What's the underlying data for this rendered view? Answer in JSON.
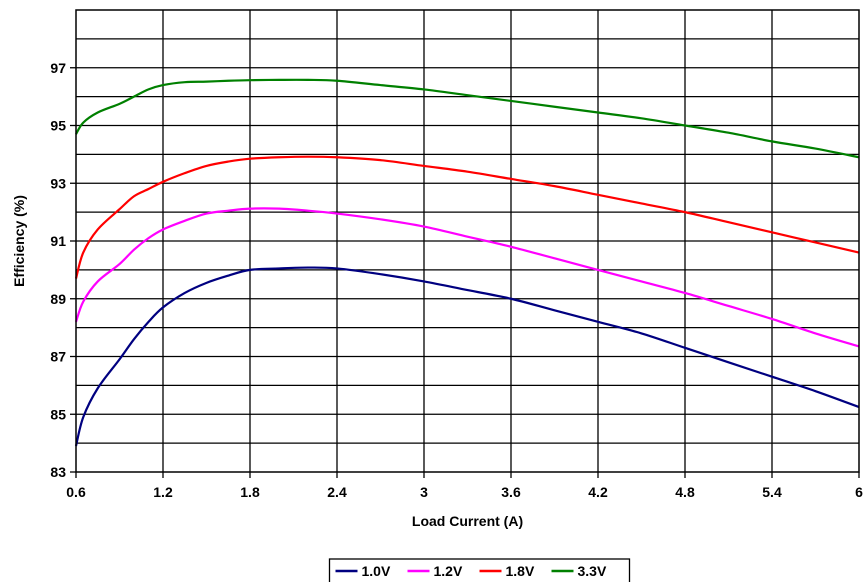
{
  "chart_data": {
    "type": "line",
    "title": "",
    "xlabel": "Load Current (A)",
    "ylabel": "Efficiency (%)",
    "xlim": [
      0.6,
      6
    ],
    "ylim": [
      83,
      99
    ],
    "xticks": [
      0.6,
      1.2,
      1.8,
      2.4,
      3,
      3.6,
      4.2,
      4.8,
      5.4,
      6
    ],
    "xtick_labels": [
      "0.6",
      "1.2",
      "1.8",
      "2.4",
      "3",
      "3.6",
      "4.2",
      "4.8",
      "5.4",
      "6"
    ],
    "yticks": [
      83,
      85,
      87,
      89,
      91,
      93,
      95,
      97
    ],
    "ytick_labels": [
      "83",
      "85",
      "87",
      "89",
      "91",
      "93",
      "95",
      "97"
    ],
    "grid": true,
    "legend_position": "bottom-center",
    "series": [
      {
        "name": "1.0V",
        "color": "#000080",
        "x": [
          0.6,
          0.65,
          0.75,
          0.9,
          1.0,
          1.1,
          1.2,
          1.35,
          1.5,
          1.65,
          1.8,
          2.0,
          2.2,
          2.4,
          2.7,
          3.0,
          3.3,
          3.6,
          3.9,
          4.2,
          4.5,
          4.8,
          5.1,
          5.4,
          5.7,
          6.0
        ],
        "y": [
          83.9,
          84.9,
          85.9,
          86.9,
          87.6,
          88.2,
          88.7,
          89.2,
          89.55,
          89.8,
          90.0,
          90.05,
          90.08,
          90.05,
          89.85,
          89.6,
          89.3,
          89.0,
          88.6,
          88.2,
          87.8,
          87.3,
          86.8,
          86.3,
          85.8,
          85.25
        ]
      },
      {
        "name": "1.2V",
        "color": "#FF00FF",
        "x": [
          0.6,
          0.65,
          0.75,
          0.9,
          1.0,
          1.1,
          1.2,
          1.35,
          1.5,
          1.65,
          1.8,
          2.0,
          2.2,
          2.4,
          2.7,
          3.0,
          3.3,
          3.6,
          3.9,
          4.2,
          4.5,
          4.8,
          5.1,
          5.4,
          5.7,
          6.0
        ],
        "y": [
          88.2,
          88.9,
          89.6,
          90.2,
          90.7,
          91.1,
          91.4,
          91.7,
          91.95,
          92.05,
          92.12,
          92.12,
          92.05,
          91.95,
          91.75,
          91.5,
          91.15,
          90.8,
          90.4,
          90.0,
          89.6,
          89.2,
          88.75,
          88.3,
          87.8,
          87.35
        ]
      },
      {
        "name": "1.8V",
        "color": "#FF0000",
        "x": [
          0.6,
          0.65,
          0.75,
          0.9,
          1.0,
          1.1,
          1.2,
          1.35,
          1.5,
          1.65,
          1.8,
          2.0,
          2.2,
          2.4,
          2.7,
          3.0,
          3.3,
          3.6,
          3.9,
          4.2,
          4.5,
          4.8,
          5.1,
          5.4,
          5.7,
          6.0
        ],
        "y": [
          89.7,
          90.6,
          91.4,
          92.1,
          92.55,
          92.8,
          93.05,
          93.35,
          93.6,
          93.75,
          93.85,
          93.9,
          93.92,
          93.9,
          93.8,
          93.6,
          93.4,
          93.15,
          92.9,
          92.6,
          92.3,
          92.0,
          91.65,
          91.3,
          90.95,
          90.6
        ]
      },
      {
        "name": "3.3V",
        "color": "#008000",
        "x": [
          0.6,
          0.65,
          0.75,
          0.9,
          1.0,
          1.1,
          1.2,
          1.35,
          1.5,
          1.65,
          1.8,
          2.0,
          2.2,
          2.4,
          2.7,
          3.0,
          3.3,
          3.6,
          3.9,
          4.2,
          4.5,
          4.8,
          5.1,
          5.4,
          5.7,
          6.0
        ],
        "y": [
          94.7,
          95.1,
          95.45,
          95.75,
          96.0,
          96.25,
          96.4,
          96.5,
          96.52,
          96.55,
          96.57,
          96.58,
          96.58,
          96.55,
          96.4,
          96.25,
          96.05,
          95.85,
          95.65,
          95.45,
          95.25,
          95.0,
          94.75,
          94.45,
          94.2,
          93.9
        ]
      }
    ]
  }
}
